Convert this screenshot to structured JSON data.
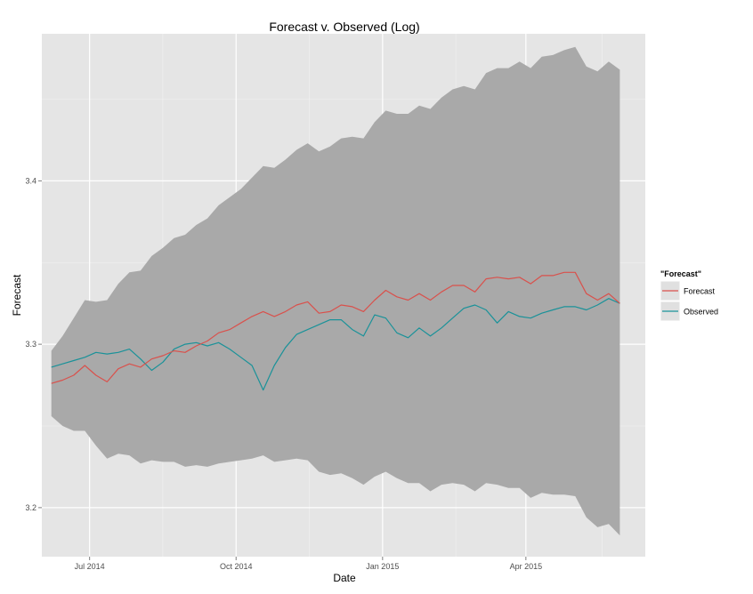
{
  "chart_data": {
    "type": "line",
    "title": "Forecast v. Observed (Log)",
    "xlabel": "Date",
    "ylabel": "Forecast",
    "xlim": [
      "2014-06-01",
      "2015-06-15"
    ],
    "ylim": [
      3.17,
      3.49
    ],
    "x_ticks": [
      {
        "date": "2014-07-01",
        "label": "Jul 2014"
      },
      {
        "date": "2014-10-01",
        "label": "Oct 2014"
      },
      {
        "date": "2015-01-01",
        "label": "Jan 2015"
      },
      {
        "date": "2015-04-01",
        "label": "Apr 2015"
      }
    ],
    "y_ticks": [
      {
        "value": 3.2,
        "label": "3.2"
      },
      {
        "value": 3.3,
        "label": "3.3"
      },
      {
        "value": 3.4,
        "label": "3.4"
      }
    ],
    "grid": true,
    "legend": {
      "title": "\"Forecast\"",
      "position": "right"
    },
    "colors": {
      "panel": "#e5e5e5",
      "band": "#a9a9a9",
      "grid": "#ffffff"
    },
    "x": [
      "2014-06-07",
      "2014-06-14",
      "2014-06-21",
      "2014-06-28",
      "2014-07-05",
      "2014-07-12",
      "2014-07-19",
      "2014-07-26",
      "2014-08-02",
      "2014-08-09",
      "2014-08-16",
      "2014-08-23",
      "2014-08-30",
      "2014-09-06",
      "2014-09-13",
      "2014-09-20",
      "2014-09-27",
      "2014-10-04",
      "2014-10-11",
      "2014-10-18",
      "2014-10-25",
      "2014-11-01",
      "2014-11-08",
      "2014-11-15",
      "2014-11-22",
      "2014-11-29",
      "2014-12-06",
      "2014-12-13",
      "2014-12-20",
      "2014-12-27",
      "2015-01-03",
      "2015-01-10",
      "2015-01-17",
      "2015-01-24",
      "2015-01-31",
      "2015-02-07",
      "2015-02-14",
      "2015-02-21",
      "2015-02-28",
      "2015-03-07",
      "2015-03-14",
      "2015-03-21",
      "2015-03-28",
      "2015-04-04",
      "2015-04-11",
      "2015-04-18",
      "2015-04-25",
      "2015-05-02",
      "2015-05-09",
      "2015-05-16",
      "2015-05-23",
      "2015-05-30"
    ],
    "series": [
      {
        "name": "Forecast",
        "color": "#d9514c",
        "values": [
          3.276,
          3.278,
          3.281,
          3.287,
          3.281,
          3.277,
          3.285,
          3.288,
          3.286,
          3.291,
          3.293,
          3.296,
          3.295,
          3.299,
          3.302,
          3.307,
          3.309,
          3.313,
          3.317,
          3.32,
          3.317,
          3.32,
          3.324,
          3.326,
          3.319,
          3.32,
          3.324,
          3.323,
          3.32,
          3.327,
          3.333,
          3.329,
          3.327,
          3.331,
          3.327,
          3.332,
          3.336,
          3.336,
          3.332,
          3.34,
          3.341,
          3.34,
          3.341,
          3.337,
          3.342,
          3.342,
          3.344,
          3.344,
          3.331,
          3.327,
          3.331,
          3.325
        ]
      },
      {
        "name": "Observed",
        "color": "#1a9299",
        "values": [
          3.286,
          3.288,
          3.29,
          3.292,
          3.295,
          3.294,
          3.295,
          3.297,
          3.291,
          3.284,
          3.289,
          3.297,
          3.3,
          3.301,
          3.299,
          3.301,
          3.297,
          3.292,
          3.287,
          3.272,
          3.287,
          3.298,
          3.306,
          3.309,
          3.312,
          3.315,
          3.315,
          3.309,
          3.305,
          3.318,
          3.316,
          3.307,
          3.304,
          3.31,
          3.305,
          3.31,
          3.316,
          3.322,
          3.324,
          3.321,
          3.313,
          3.32,
          3.317,
          3.316,
          3.319,
          3.321,
          3.323,
          3.323,
          3.321,
          3.324,
          3.328,
          3.325
        ]
      }
    ],
    "band": {
      "lower": [
        3.256,
        3.25,
        3.247,
        3.247,
        3.238,
        3.23,
        3.233,
        3.232,
        3.227,
        3.229,
        3.228,
        3.228,
        3.225,
        3.226,
        3.225,
        3.227,
        3.228,
        3.229,
        3.23,
        3.232,
        3.228,
        3.229,
        3.23,
        3.229,
        3.222,
        3.22,
        3.221,
        3.218,
        3.214,
        3.219,
        3.222,
        3.218,
        3.215,
        3.215,
        3.21,
        3.214,
        3.215,
        3.214,
        3.21,
        3.215,
        3.214,
        3.212,
        3.212,
        3.206,
        3.209,
        3.208,
        3.208,
        3.207,
        3.194,
        3.188,
        3.19,
        3.183
      ],
      "upper": [
        3.296,
        3.305,
        3.316,
        3.327,
        3.326,
        3.327,
        3.337,
        3.344,
        3.345,
        3.354,
        3.359,
        3.365,
        3.367,
        3.373,
        3.377,
        3.385,
        3.39,
        3.395,
        3.402,
        3.409,
        3.408,
        3.413,
        3.419,
        3.423,
        3.418,
        3.421,
        3.426,
        3.427,
        3.426,
        3.436,
        3.443,
        3.441,
        3.441,
        3.446,
        3.444,
        3.451,
        3.456,
        3.458,
        3.456,
        3.466,
        3.469,
        3.469,
        3.473,
        3.469,
        3.476,
        3.477,
        3.48,
        3.482,
        3.47,
        3.467,
        3.473,
        3.468
      ]
    }
  }
}
